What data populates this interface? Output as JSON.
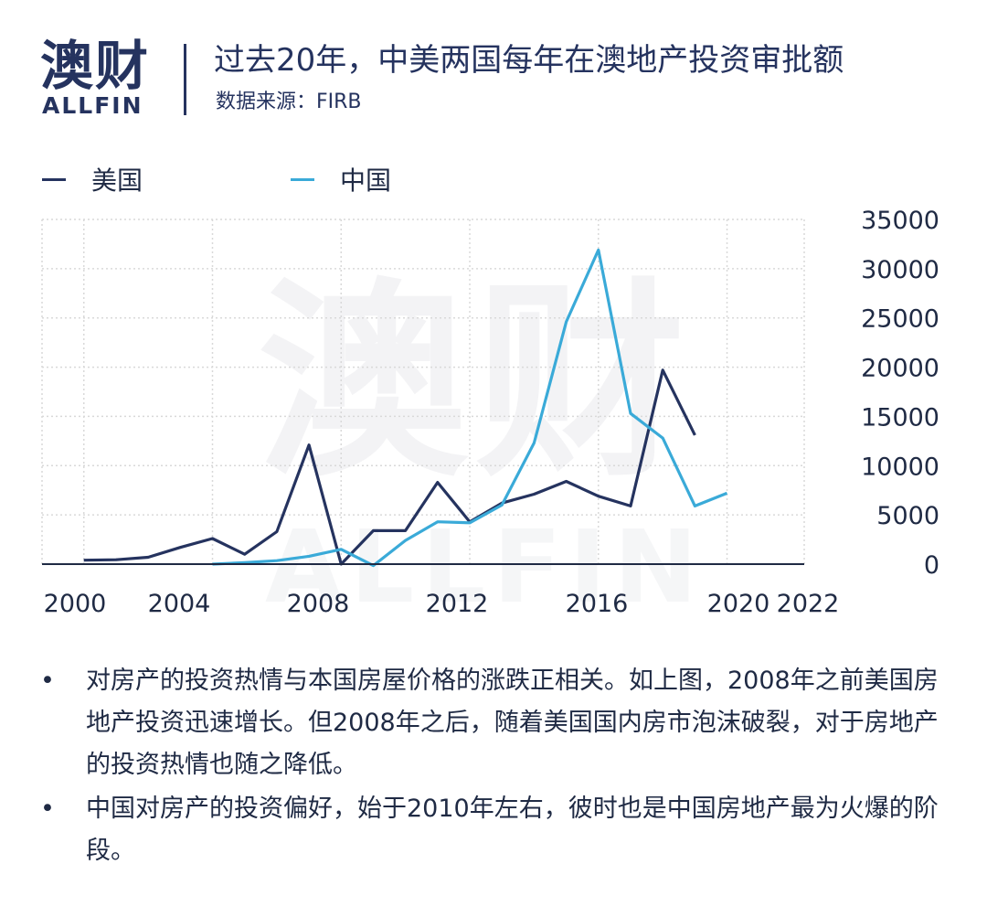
{
  "header": {
    "logo_cn": "澳财",
    "logo_en": "ALLFIN",
    "title": "过去20年，中美两国每年在澳地产投资审批额",
    "subtitle": "数据来源：FIRB"
  },
  "watermark": {
    "cn": "澳财",
    "en": "ALLFIN"
  },
  "colors": {
    "usa": "#25335f",
    "china": "#3aaad8",
    "brand": "#25335f",
    "grid": "#d9d9d9"
  },
  "chart_data": {
    "type": "line",
    "title": "过去20年，中美两国每年在澳地产投资审批额",
    "xlim": [
      1998.7,
      2022.4
    ],
    "ylim": [
      0,
      35000
    ],
    "x_ticks": [
      2000,
      2004,
      2008,
      2012,
      2016,
      2020,
      2022
    ],
    "y_ticks": [
      0,
      5000,
      10000,
      15000,
      20000,
      25000,
      30000,
      35000
    ],
    "grid": true,
    "legend_position": "top-left",
    "series": [
      {
        "name": "美国",
        "color": "#25335f",
        "x": [
          2000,
          2001,
          2002,
          2003,
          2004,
          2005,
          2006,
          2007,
          2008,
          2009,
          2010,
          2011,
          2012,
          2013,
          2014,
          2015,
          2016,
          2017,
          2018,
          2019,
          2020
        ],
        "y": [
          400,
          450,
          700,
          1700,
          2600,
          1000,
          3300,
          12100,
          0,
          3400,
          3400,
          8300,
          4300,
          6200,
          7100,
          8400,
          6900,
          5900,
          19700,
          13100,
          null
        ]
      },
      {
        "name": "中国",
        "color": "#3aaad8",
        "x": [
          2004,
          2005,
          2006,
          2007,
          2008,
          2009,
          2010,
          2011,
          2012,
          2013,
          2014,
          2015,
          2016,
          2017,
          2018,
          2019,
          2020
        ],
        "y": [
          0,
          150,
          350,
          800,
          1500,
          -150,
          2400,
          4300,
          4200,
          6000,
          12300,
          24600,
          31900,
          15300,
          12800,
          5900,
          7200
        ]
      }
    ]
  },
  "notes": [
    "对房产的投资热情与本国房屋价格的涨跌正相关。如上图，2008年之前美国房地产投资迅速增长。但2008年之后，随着美国国内房市泡沫破裂，对于房地产的投资热情也随之降低。",
    "中国对房产的投资偏好，始于2010年左右，彼时也是中国房地产最为火爆的阶段。"
  ],
  "bullet": "•"
}
